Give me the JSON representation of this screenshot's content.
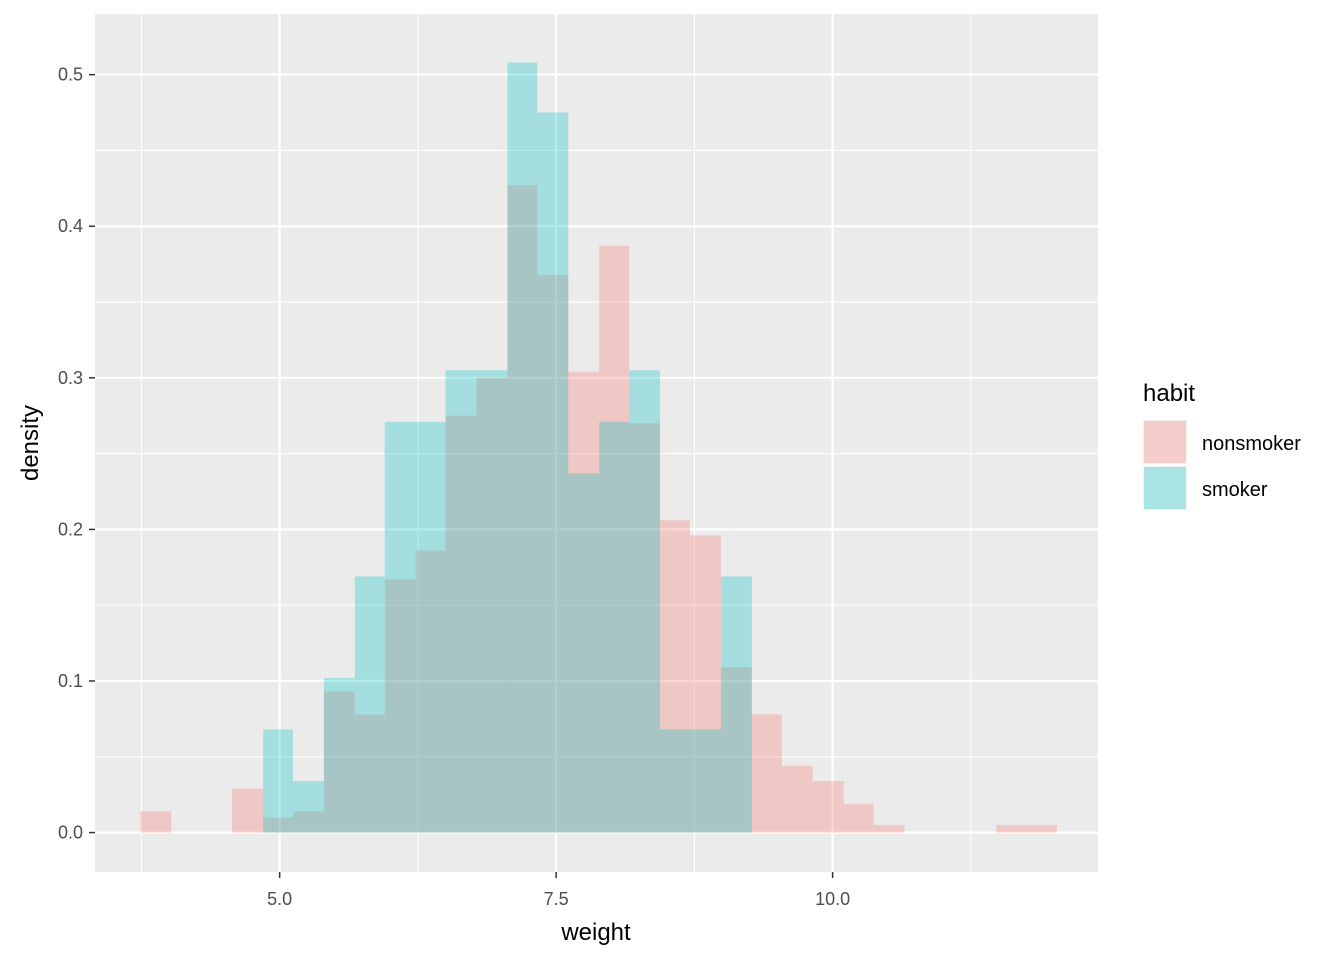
{
  "chart_data": {
    "type": "histogram",
    "title": "",
    "xlabel": "weight",
    "ylabel": "density",
    "xlim": [
      3.33,
      12.4
    ],
    "ylim": [
      -0.026,
      0.54
    ],
    "x_ticks": [
      5.0,
      7.5,
      10.0
    ],
    "x_tick_labels": [
      "5.0",
      "7.5",
      "10.0"
    ],
    "y_ticks": [
      0.0,
      0.1,
      0.2,
      0.3,
      0.4,
      0.5
    ],
    "y_tick_labels": [
      "0.0",
      "0.1",
      "0.2",
      "0.3",
      "0.4",
      "0.5"
    ],
    "grid": true,
    "legend_position": "right",
    "legend_title": "habit",
    "bin_edges": [
      3.74,
      4.02,
      4.29,
      4.57,
      4.85,
      5.12,
      5.4,
      5.68,
      5.95,
      6.23,
      6.5,
      6.78,
      7.06,
      7.33,
      7.61,
      7.89,
      8.16,
      8.44,
      8.71,
      8.99,
      9.27,
      9.54,
      9.82,
      10.1,
      10.37,
      10.65,
      10.92,
      11.2,
      11.48,
      11.75,
      12.03
    ],
    "series": [
      {
        "name": "nonsmoker",
        "color": "#F8766D",
        "values": [
          0.014,
          0,
          0,
          0.029,
          0.01,
          0.014,
          0.093,
          0.078,
          0.167,
          0.186,
          0.275,
          0.3,
          0.427,
          0.368,
          0.304,
          0.387,
          0.27,
          0.206,
          0.196,
          0.109,
          0.078,
          0.044,
          0.034,
          0.019,
          0.005,
          0,
          0,
          0,
          0.005,
          0.005
        ]
      },
      {
        "name": "smoker",
        "color": "#00BFC4",
        "values": [
          0,
          0,
          0,
          0,
          0.068,
          0.034,
          0.102,
          0.169,
          0.271,
          0.271,
          0.305,
          0.305,
          0.508,
          0.475,
          0.237,
          0.271,
          0.305,
          0.068,
          0.068,
          0.169,
          0,
          0,
          0,
          0,
          0,
          0,
          0,
          0,
          0,
          0
        ]
      }
    ]
  }
}
